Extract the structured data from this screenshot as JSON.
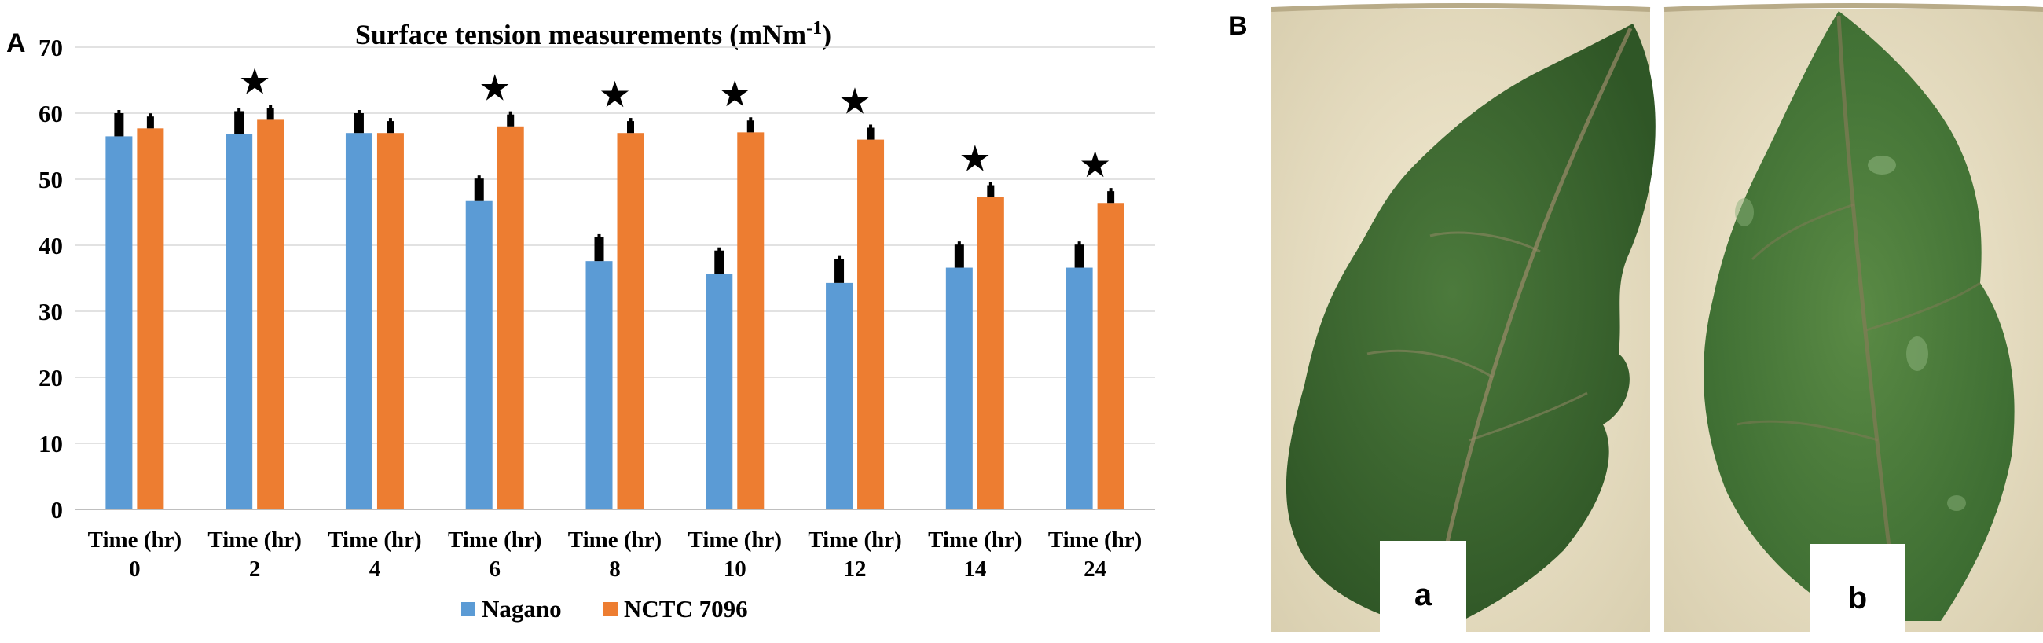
{
  "panels": {
    "a_letter": "A",
    "b_letter": "B"
  },
  "chart_data": {
    "type": "bar",
    "title_main": "Surface tension measurements (mNm",
    "title_sup": "-1",
    "title_end": ")",
    "xlabel": "",
    "ylabel": "",
    "ylim": [
      0,
      70
    ],
    "yticks": [
      0,
      10,
      20,
      30,
      40,
      50,
      60,
      70
    ],
    "grid": true,
    "legend_position": "bottom",
    "categories": [
      [
        "Time (hr)",
        "0"
      ],
      [
        "Time (hr)",
        "2"
      ],
      [
        "Time (hr)",
        "4"
      ],
      [
        "Time (hr)",
        "6"
      ],
      [
        "Time (hr)",
        "8"
      ],
      [
        "Time (hr)",
        "10"
      ],
      [
        "Time (hr)",
        "12"
      ],
      [
        "Time (hr)",
        "14"
      ],
      [
        "Time (hr)",
        "24"
      ]
    ],
    "series": [
      {
        "name": "Nagano",
        "color": "#5b9bd5",
        "values": [
          56.5,
          56.8,
          57.0,
          46.7,
          37.6,
          35.7,
          34.3,
          36.6,
          36.6
        ],
        "errors": [
          3.5,
          3.5,
          3.0,
          3.4,
          3.6,
          3.5,
          3.6,
          3.5,
          3.5
        ]
      },
      {
        "name": "NCTC 7096",
        "color": "#ed7d31",
        "values": [
          57.7,
          59.0,
          57.0,
          58.0,
          57.0,
          57.1,
          56.0,
          47.3,
          46.4
        ],
        "errors": [
          1.8,
          1.8,
          1.8,
          1.8,
          1.8,
          1.8,
          1.8,
          1.8,
          1.8
        ]
      }
    ],
    "significance": [
      false,
      true,
      false,
      true,
      true,
      true,
      true,
      true,
      true
    ],
    "significance_symbol": "★",
    "error_bar_color": "#000000"
  },
  "photo": {
    "label_a": "a",
    "label_b": "b",
    "tray_color": "#ede3c7",
    "leaf_color": "#3e6a33",
    "vein_color": "#9a8a6a"
  }
}
